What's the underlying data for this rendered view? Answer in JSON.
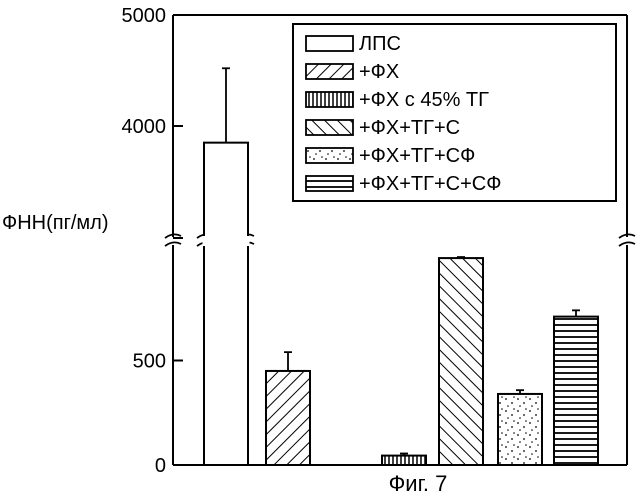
{
  "chart_data": {
    "type": "bar",
    "ylabel": "ФНН(пг/мл)",
    "caption": "Фиг. 7",
    "y_axis_break": true,
    "y_ticks_lower": [
      0,
      500
    ],
    "y_ticks_upper": [
      4000,
      5000
    ],
    "ylim_lower": [
      0,
      1000
    ],
    "ylim_upper": [
      3000,
      5000
    ],
    "series": [
      {
        "name": "ЛПС",
        "value": 3850,
        "error": 670,
        "pattern": "open"
      },
      {
        "name": "+ФХ",
        "value": 450,
        "error": 90,
        "pattern": "diagonal"
      },
      {
        "name": "+ФХ с 45% ТГ",
        "value": 45,
        "error": 10,
        "pattern": "vertical"
      },
      {
        "name": "+ФХ+ТГ+С",
        "value": 990,
        "error": 5,
        "pattern": "backdiagonal"
      },
      {
        "name": "+ФХ+ТГ+СФ",
        "value": 340,
        "error": 18,
        "pattern": "dotted"
      },
      {
        "name": "+ФХ+ТГ+С+СФ",
        "value": 710,
        "error": 30,
        "pattern": "horizontal"
      }
    ],
    "legend_position": "top-right",
    "grid": false
  },
  "colors": {
    "stroke": "#000000",
    "fill": "#ffffff"
  }
}
